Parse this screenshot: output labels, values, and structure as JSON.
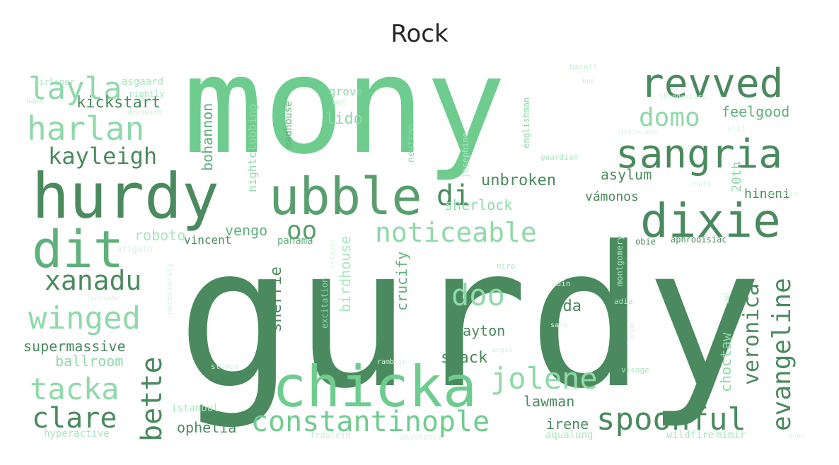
{
  "title": "Rock",
  "palette": {
    "dark": "#4a8a5e",
    "mid": "#5fb07a",
    "light": "#6fcc8f",
    "pale": "#a8e6bd",
    "faint": "#d4f2de"
  },
  "words": [
    {
      "text": "mony",
      "color": "#6fcc8f"
    },
    {
      "text": "gurdy",
      "color": "#4a8a5e"
    },
    {
      "text": "hurdy",
      "color": "#4a8a5e"
    },
    {
      "text": "ubble",
      "color": "#5a9e6e"
    },
    {
      "text": "chicka",
      "color": "#6fcc8f"
    },
    {
      "text": "dit",
      "color": "#5fb07a"
    },
    {
      "text": "revved",
      "color": "#4a8a5e"
    },
    {
      "text": "sangria",
      "color": "#4a8a5e"
    },
    {
      "text": "dixie",
      "color": "#4a8a5e"
    },
    {
      "text": "layla",
      "color": "#8fd9a9"
    },
    {
      "text": "harlan",
      "color": "#8fd9a9"
    },
    {
      "text": "kayleigh",
      "color": "#4a8a5e"
    },
    {
      "text": "kickstart",
      "color": "#4a8a5e"
    },
    {
      "text": "domo",
      "color": "#8fd9a9"
    },
    {
      "text": "feelgood",
      "color": "#5fb07a"
    },
    {
      "text": "noticeable",
      "color": "#8fd9a9"
    },
    {
      "text": "xanadu",
      "color": "#4a8a5e"
    },
    {
      "text": "winged",
      "color": "#8fd9a9"
    },
    {
      "text": "tacka",
      "color": "#8fd9a9"
    },
    {
      "text": "clare",
      "color": "#4a8a5e"
    },
    {
      "text": "bette",
      "color": "#4a8a5e"
    },
    {
      "text": "constantinople",
      "color": "#6fcc8f"
    },
    {
      "text": "jolene",
      "color": "#8fd9a9"
    },
    {
      "text": "spoonful",
      "color": "#4a8a5e"
    },
    {
      "text": "veronica",
      "color": "#4a8a5e"
    },
    {
      "text": "evangeline",
      "color": "#4a8a5e"
    },
    {
      "text": "doo",
      "color": "#8fd9a9"
    },
    {
      "text": "di",
      "color": "#4a8a5e"
    },
    {
      "text": "oo",
      "color": "#5a9e6e"
    },
    {
      "text": "unbroken",
      "color": "#4a8a5e"
    },
    {
      "text": "sherlock",
      "color": "#8fd9a9"
    },
    {
      "text": "asylum",
      "color": "#4a8a5e"
    },
    {
      "text": "vámonos",
      "color": "#4a8a5e"
    },
    {
      "text": "hineni",
      "color": "#4a8a5e"
    },
    {
      "text": "20th",
      "color": "#8fd9a9"
    },
    {
      "text": "lido",
      "color": "#8fd9a9"
    },
    {
      "text": "grove",
      "color": "#8fd9a9"
    },
    {
      "text": "vengo",
      "color": "#5fb07a"
    },
    {
      "text": "roboto",
      "color": "#a8e6bd"
    },
    {
      "text": "vincent",
      "color": "#4a8a5e"
    },
    {
      "text": "panama",
      "color": "#5fb07a"
    },
    {
      "text": "supermassive",
      "color": "#4a8a5e"
    },
    {
      "text": "ballroom",
      "color": "#8fd9a9"
    },
    {
      "text": "ophelia",
      "color": "#4a8a5e"
    },
    {
      "text": "lawman",
      "color": "#4a8a5e"
    },
    {
      "text": "irene",
      "color": "#4a8a5e"
    },
    {
      "text": "shack",
      "color": "#4a8a5e"
    },
    {
      "text": "slayton",
      "color": "#4a8a5e"
    },
    {
      "text": "doda",
      "color": "#4a8a5e"
    },
    {
      "text": "choctaw",
      "color": "#8fd9a9"
    },
    {
      "text": "sherrie",
      "color": "#4a8a5e"
    },
    {
      "text": "crucify",
      "color": "#5fb07a"
    },
    {
      "text": "birdhouse",
      "color": "#a8e6bd"
    },
    {
      "text": "bohannon",
      "color": "#5fb07a"
    },
    {
      "text": "nightclubbing",
      "color": "#8fd9a9"
    },
    {
      "text": "madhouse",
      "color": "#5fb07a"
    },
    {
      "text": "asgaard",
      "color": "#a8e6bd"
    },
    {
      "text": "airliner",
      "color": "#a8e6bd"
    },
    {
      "text": "rightly",
      "color": "#a8e6bd"
    },
    {
      "text": "bapa",
      "color": "#c7efd4"
    },
    {
      "text": "drunkard",
      "color": "#c7efd4"
    },
    {
      "text": "mot",
      "color": "#c7efd4"
    },
    {
      "text": "neutron",
      "color": "#8fd9a9"
    },
    {
      "text": "josephine",
      "color": "#a8e6bd"
    },
    {
      "text": "englishman",
      "color": "#8fd9a9"
    },
    {
      "text": "guardian",
      "color": "#a8e6bd"
    },
    {
      "text": "bacall",
      "color": "#c7efd4"
    },
    {
      "text": "koo",
      "color": "#c7efd4"
    },
    {
      "text": "thunderbird",
      "color": "#d4f2de"
    },
    {
      "text": "slit",
      "color": "#d4f2de"
    },
    {
      "text": "dixieland",
      "color": "#d4f2de"
    },
    {
      "text": "chula",
      "color": "#d4f2de"
    },
    {
      "text": "unchain",
      "color": "#d4f2de"
    },
    {
      "text": "obie",
      "color": "#4a8a5e"
    },
    {
      "text": "aphrodisiac",
      "color": "#4a8a5e"
    },
    {
      "text": "arigato",
      "color": "#d4f2de"
    },
    {
      "text": "lonesome",
      "color": "#d4f2de"
    },
    {
      "text": "necessarily",
      "color": "#d4f2de"
    },
    {
      "text": "excitation",
      "color": "#8fd9a9"
    },
    {
      "text": "celeste",
      "color": "#d4f2de"
    },
    {
      "text": "niro",
      "color": "#a8e6bd"
    },
    {
      "text": "odin",
      "color": "#d4f2de"
    },
    {
      "text": "montgomery",
      "color": "#a8e6bd"
    },
    {
      "text": "adia",
      "color": "#a8e6bd"
    },
    {
      "text": "ohoh",
      "color": "#d4f2de"
    },
    {
      "text": "duh",
      "color": "#d4f2de"
    },
    {
      "text": "sans",
      "color": "#d4f2de"
    },
    {
      "text": "angst",
      "color": "#d4f2de"
    },
    {
      "text": "visage",
      "color": "#a8e6bd"
    },
    {
      "text": "stompa",
      "color": "#d4f2de"
    },
    {
      "text": "ramblin",
      "color": "#d4f2de"
    },
    {
      "text": "istanbul",
      "color": "#a8e6bd"
    },
    {
      "text": "hyperactive",
      "color": "#a8e6bd"
    },
    {
      "text": "fraulein",
      "color": "#c7efd4"
    },
    {
      "text": "anastasia",
      "color": "#d4f2de"
    },
    {
      "text": "aqualung",
      "color": "#a8e6bd"
    },
    {
      "text": "wildfire",
      "color": "#a8e6bd"
    },
    {
      "text": "mimir",
      "color": "#a8e6bd"
    },
    {
      "text": "dooo",
      "color": "#d4f2de"
    }
  ]
}
